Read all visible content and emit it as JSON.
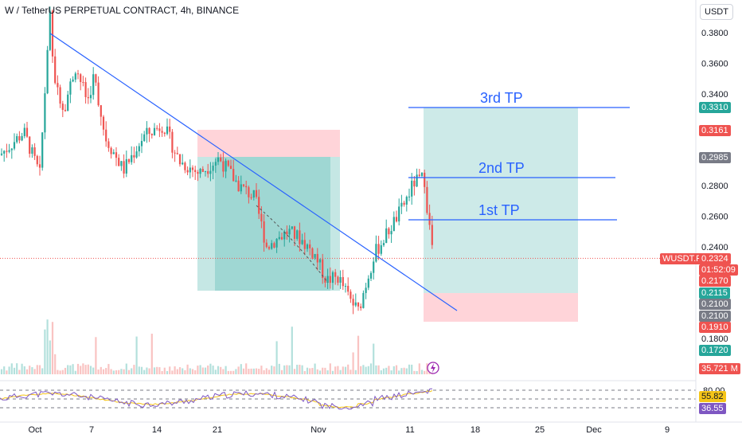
{
  "header": {
    "title": "W / TetherUS PERPETUAL CONTRACT, 4h, BINANCE",
    "currency": "USDT"
  },
  "colors": {
    "up": "#26a69a",
    "down": "#ef5350",
    "trendline": "#2962ff",
    "rsi": "#7e57c2",
    "rsi_ma": "#f5c518",
    "profit_zone": "#b2dfdb",
    "loss_zone": "#ffcdd2"
  },
  "chart_data": {
    "type": "candlestick",
    "y_axis": {
      "ticks": [
        0.38,
        0.36,
        0.34,
        0.28,
        0.26,
        0.24,
        0.18
      ],
      "tick_labels": [
        "0.3800",
        "0.3600",
        "0.3400",
        "0.2800",
        "0.2600",
        "0.2400",
        "0.1800"
      ],
      "range": [
        0.16,
        0.396
      ]
    },
    "x_axis": {
      "tick_labels": [
        "Oct",
        "7",
        "14",
        "21",
        "Nov",
        "11",
        "18",
        "25",
        "Dec",
        "9"
      ]
    },
    "price_tags": [
      {
        "value": 0.331,
        "label": "0.3310",
        "color": "#26a69a"
      },
      {
        "value": 0.3161,
        "label": "0.3161",
        "color": "#ef5350"
      },
      {
        "value": 0.2985,
        "label": "0.2985",
        "color": "#787b86"
      },
      {
        "value": 0.217,
        "label": "0.2170",
        "color": "#ef5350"
      },
      {
        "value": 0.2115,
        "label": "0.2115",
        "color": "#26a69a"
      },
      {
        "value": 0.21,
        "label": "0.2100",
        "color": "#787b86"
      },
      {
        "value": 0.21,
        "label": "0.2100",
        "color": "#787b86"
      },
      {
        "value": 0.191,
        "label": "0.1910",
        "color": "#ef5350"
      },
      {
        "value": 0.172,
        "label": "0.1720",
        "color": "#26a69a"
      }
    ],
    "current_price": {
      "symbol": "WUSDT.P",
      "value": 0.2324,
      "label": "0.2324",
      "countdown": "01:52:09"
    },
    "volume_label": "35.721 M",
    "take_profits": [
      {
        "label": "3rd  TP",
        "value": 0.331
      },
      {
        "label": "2nd TP",
        "value": 0.2855
      },
      {
        "label": "1st TP",
        "value": 0.2575
      }
    ],
    "rsi": {
      "upper_label": "80.00",
      "value_label": "55.82",
      "value2_label": "36.55",
      "levels": [
        80,
        50,
        20
      ]
    }
  }
}
